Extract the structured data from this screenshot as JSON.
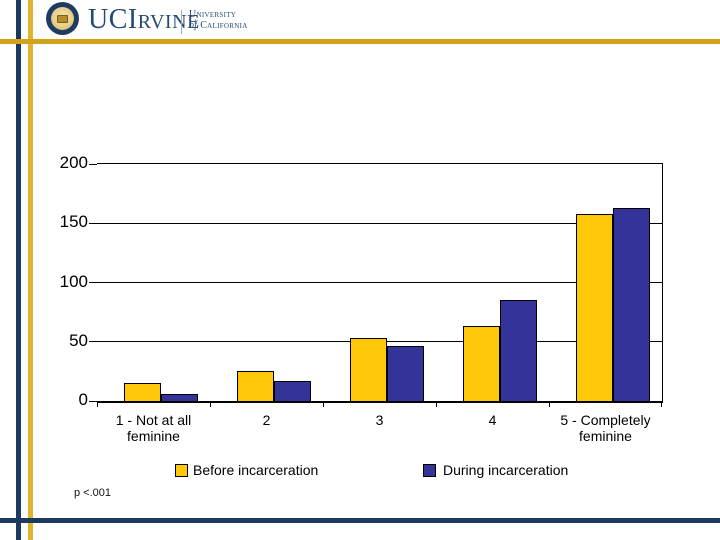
{
  "header": {
    "wordmark": "UCIrvine",
    "affiliation_line1": "University",
    "affiliation_of": "of",
    "affiliation_line2": "California"
  },
  "colors": {
    "frame_navy": "#1b3a5f",
    "frame_gold_horizontal": "#d2a21a",
    "frame_gold_vertical": "#e0b52c",
    "bar_yellow": "#ffc808",
    "bar_blue": "#333399",
    "logo_navy": "#254b73"
  },
  "chart_data": {
    "type": "bar",
    "categories": [
      [
        "1 - Not at all",
        "feminine"
      ],
      [
        "2"
      ],
      [
        "3"
      ],
      [
        "4"
      ],
      [
        "5 - Completely",
        "feminine"
      ]
    ],
    "series": [
      {
        "name": "Before incarceration",
        "color": "#ffc808",
        "values": [
          15,
          25,
          53,
          63,
          158
        ]
      },
      {
        "name": "During incarceration",
        "color": "#333399",
        "values": [
          6,
          17,
          46,
          85,
          163
        ]
      }
    ],
    "title": "",
    "xlabel": "",
    "ylabel": "",
    "ylim": [
      0,
      200
    ],
    "yticks": [
      0,
      50,
      100,
      150,
      200
    ],
    "grid": true,
    "legend_position": "bottom",
    "annotation": "p <.001"
  }
}
